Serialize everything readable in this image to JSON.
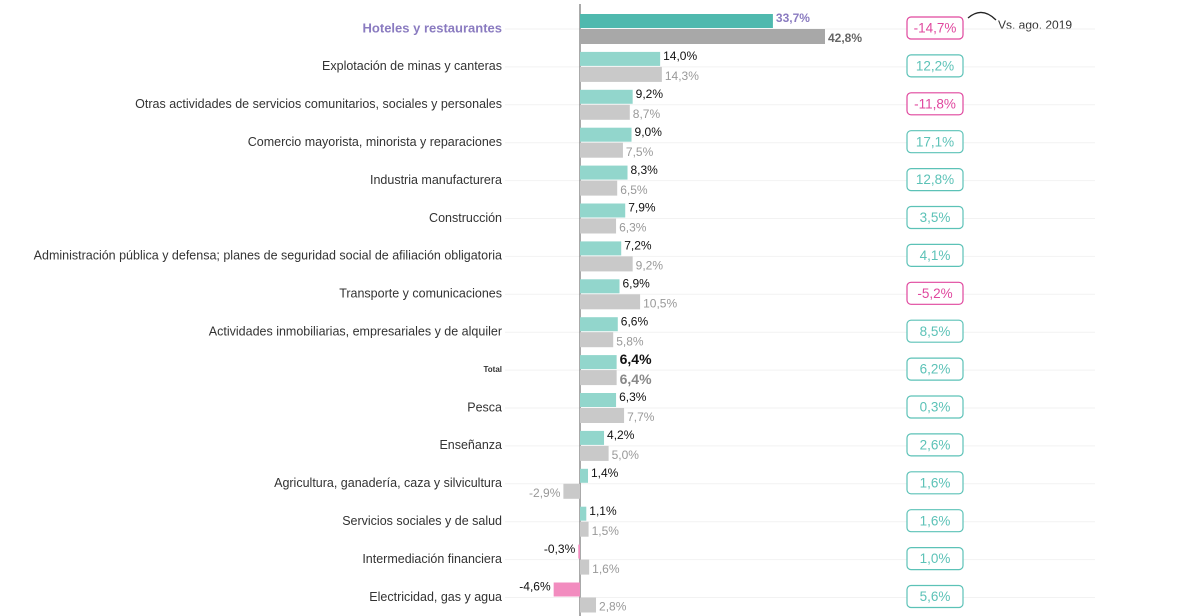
{
  "chart_data": {
    "type": "bar",
    "orientation": "horizontal",
    "annotation": "Vs. ago. 2019",
    "categories": [
      "Hoteles y restaurantes",
      "Explotación de minas y canteras",
      "Otras actividades de servicios comunitarios, sociales y personales",
      "Comercio mayorista, minorista y reparaciones",
      "Industria manufacturera",
      "Construcción",
      "Administración pública y defensa; planes de seguridad social de afiliación obligatoria",
      "Transporte y comunicaciones",
      "Actividades inmobiliarias, empresariales y de alquiler",
      "Total",
      "Pesca",
      "Enseñanza",
      "Agricultura, ganadería, caza y silvicultura",
      "Servicios sociales y de salud",
      "Intermediación financiera",
      "Electricidad, gas y agua"
    ],
    "series": [
      {
        "color": "#92d6cc",
        "highlight_color": "#4fb9ae",
        "negative_color": "#f28cbf",
        "values": [
          33.7,
          14.0,
          9.2,
          9.0,
          8.3,
          7.9,
          7.2,
          6.9,
          6.6,
          6.4,
          6.3,
          4.2,
          1.4,
          1.1,
          -0.3,
          -4.6
        ],
        "value_labels": [
          "33,7%",
          "14,0%",
          "9,2%",
          "9,0%",
          "8,3%",
          "7,9%",
          "7,2%",
          "6,9%",
          "6,6%",
          "6,4%",
          "6,3%",
          "4,2%",
          "1,4%",
          "1,1%",
          "-0,3%",
          "-4,6%"
        ]
      },
      {
        "color": "#c9c9c9",
        "highlight_color": "#a8a8a8",
        "values": [
          42.8,
          14.3,
          8.7,
          7.5,
          6.5,
          6.3,
          9.2,
          10.5,
          5.8,
          6.4,
          7.7,
          5.0,
          -2.9,
          1.5,
          1.6,
          2.8
        ],
        "value_labels": [
          "42,8%",
          "14,3%",
          "8,7%",
          "7,5%",
          "6,5%",
          "6,3%",
          "9,2%",
          "10,5%",
          "5,8%",
          "6,4%",
          "7,7%",
          "5,0%",
          "-2,9%",
          "1,5%",
          "1,6%",
          "2,8%"
        ]
      }
    ],
    "changes": {
      "positive_color": "#5cc2b7",
      "negative_color": "#e0479e",
      "values": [
        -14.7,
        12.2,
        -11.8,
        17.1,
        12.8,
        3.5,
        4.1,
        -5.2,
        8.5,
        6.2,
        0.3,
        2.6,
        1.6,
        1.6,
        1.0,
        5.6
      ],
      "value_labels": [
        "-14,7%",
        "12,2%",
        "-11,8%",
        "17,1%",
        "12,8%",
        "3,5%",
        "4,1%",
        "-5,2%",
        "8,5%",
        "6,2%",
        "0,3%",
        "2,6%",
        "1,6%",
        "1,6%",
        "1,0%",
        "5,6%"
      ]
    }
  }
}
